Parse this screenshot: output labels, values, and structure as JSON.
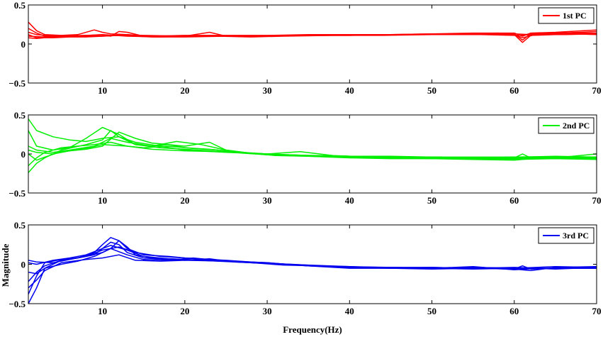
{
  "chart_data": [
    {
      "type": "line",
      "legend_position": "top-right",
      "legend_label": "1st PC",
      "color": "#ff0000",
      "xlim": [
        1,
        70
      ],
      "ylim": [
        -0.5,
        0.5
      ],
      "xticks": [
        10,
        20,
        30,
        40,
        50,
        60,
        70
      ],
      "yticks": [
        0.5,
        0,
        -0.5
      ],
      "xtick_labels": [
        "10",
        "20",
        "30",
        "40",
        "50",
        "60",
        "70"
      ],
      "ytick_labels": [
        "0.5",
        "0",
        "−0.5"
      ],
      "xlabel": "",
      "ylabel": "",
      "grid": false,
      "series": [
        {
          "x": [
            1,
            2,
            3,
            5,
            7,
            9,
            10,
            11,
            13,
            15,
            18,
            20,
            23,
            25,
            28,
            30,
            35,
            40,
            45,
            50,
            55,
            58,
            60,
            61,
            62,
            65,
            68,
            70
          ],
          "y": [
            0.28,
            0.17,
            0.12,
            0.11,
            0.12,
            0.18,
            0.15,
            0.13,
            0.12,
            0.1,
            0.1,
            0.1,
            0.11,
            0.1,
            0.1,
            0.1,
            0.11,
            0.12,
            0.12,
            0.13,
            0.13,
            0.14,
            0.13,
            0.05,
            0.13,
            0.14,
            0.15,
            0.16
          ]
        },
        {
          "x": [
            1,
            2,
            3,
            5,
            8,
            10,
            11,
            12,
            13,
            15,
            20,
            23,
            25,
            30,
            35,
            40,
            45,
            50,
            55,
            60,
            61,
            62,
            65,
            70
          ],
          "y": [
            0.2,
            0.14,
            0.1,
            0.1,
            0.11,
            0.12,
            0.1,
            0.16,
            0.15,
            0.1,
            0.1,
            0.15,
            0.1,
            0.1,
            0.11,
            0.11,
            0.12,
            0.13,
            0.14,
            0.14,
            0.1,
            0.14,
            0.15,
            0.18
          ]
        },
        {
          "x": [
            1,
            2,
            4,
            6,
            8,
            10,
            12,
            14,
            16,
            20,
            25,
            30,
            35,
            40,
            45,
            50,
            55,
            60,
            61,
            63,
            66,
            70
          ],
          "y": [
            0.12,
            0.08,
            0.08,
            0.09,
            0.09,
            0.1,
            0.11,
            0.1,
            0.09,
            0.09,
            0.1,
            0.1,
            0.11,
            0.12,
            0.12,
            0.12,
            0.13,
            0.12,
            0.08,
            0.13,
            0.14,
            0.14
          ]
        },
        {
          "x": [
            1,
            3,
            5,
            8,
            10,
            12,
            15,
            20,
            25,
            30,
            35,
            40,
            45,
            50,
            55,
            58,
            60,
            61,
            62,
            65,
            70
          ],
          "y": [
            0.1,
            0.09,
            0.1,
            0.11,
            0.1,
            0.11,
            0.11,
            0.1,
            0.1,
            0.1,
            0.11,
            0.11,
            0.12,
            0.12,
            0.13,
            0.13,
            0.12,
            0.02,
            0.11,
            0.12,
            0.13
          ]
        },
        {
          "x": [
            1,
            2,
            3,
            6,
            9,
            11,
            13,
            16,
            20,
            25,
            30,
            35,
            40,
            45,
            50,
            55,
            60,
            62,
            66,
            70
          ],
          "y": [
            0.15,
            0.12,
            0.11,
            0.1,
            0.1,
            0.11,
            0.12,
            0.1,
            0.11,
            0.11,
            0.11,
            0.12,
            0.12,
            0.12,
            0.12,
            0.13,
            0.13,
            0.12,
            0.12,
            0.13
          ]
        },
        {
          "x": [
            1,
            2,
            4,
            7,
            10,
            13,
            17,
            20,
            24,
            28,
            32,
            38,
            44,
            50,
            56,
            60,
            63,
            67,
            70
          ],
          "y": [
            0.08,
            0.07,
            0.09,
            0.1,
            0.12,
            0.1,
            0.09,
            0.1,
            0.1,
            0.09,
            0.1,
            0.11,
            0.11,
            0.12,
            0.12,
            0.11,
            0.12,
            0.13,
            0.12
          ]
        }
      ]
    },
    {
      "type": "line",
      "legend_position": "top-right",
      "legend_label": "2nd PC",
      "color": "#00ee00",
      "xlim": [
        1,
        70
      ],
      "ylim": [
        -0.5,
        0.5
      ],
      "xticks": [
        10,
        20,
        30,
        40,
        50,
        60,
        70
      ],
      "yticks": [
        0.5,
        0,
        -0.5
      ],
      "xtick_labels": [
        "10",
        "20",
        "30",
        "40",
        "50",
        "60",
        "70"
      ],
      "ytick_labels": [
        "0.5",
        "0",
        "−0.5"
      ],
      "xlabel": "",
      "ylabel": "",
      "grid": false,
      "series": [
        {
          "x": [
            1,
            2,
            4,
            6,
            8,
            10,
            12,
            14,
            16,
            18,
            20,
            23,
            25,
            27,
            30,
            35,
            40,
            45,
            50,
            55,
            60,
            61,
            62,
            65,
            70
          ],
          "y": [
            0.45,
            0.3,
            0.22,
            0.18,
            0.16,
            0.2,
            0.22,
            0.12,
            0.1,
            0.12,
            0.1,
            0.15,
            0.05,
            0.02,
            0.0,
            -0.02,
            -0.03,
            -0.04,
            -0.04,
            -0.05,
            -0.05,
            0.0,
            -0.05,
            -0.05,
            -0.06
          ]
        },
        {
          "x": [
            1,
            2,
            3,
            5,
            8,
            10,
            11,
            12,
            14,
            17,
            20,
            25,
            30,
            34,
            38,
            45,
            50,
            55,
            60,
            65,
            70
          ],
          "y": [
            -0.24,
            -0.12,
            -0.05,
            0.05,
            0.12,
            0.18,
            0.3,
            0.22,
            0.15,
            0.1,
            0.05,
            0.02,
            0.0,
            0.03,
            -0.02,
            -0.05,
            -0.06,
            -0.06,
            -0.07,
            -0.06,
            -0.07
          ]
        },
        {
          "x": [
            1,
            2,
            4,
            6,
            8,
            10,
            12,
            14,
            17,
            20,
            23,
            26,
            30,
            35,
            40,
            45,
            50,
            55,
            60,
            65,
            70
          ],
          "y": [
            0.3,
            0.1,
            0.05,
            0.08,
            0.2,
            0.34,
            0.25,
            0.12,
            0.08,
            0.06,
            0.04,
            0.02,
            0.0,
            -0.02,
            -0.03,
            -0.04,
            -0.04,
            -0.05,
            -0.04,
            -0.04,
            -0.05
          ]
        },
        {
          "x": [
            1,
            2,
            3,
            5,
            7,
            9,
            11,
            13,
            15,
            18,
            21,
            24,
            27,
            30,
            35,
            40,
            45,
            50,
            55,
            60,
            65,
            70
          ],
          "y": [
            -0.15,
            -0.05,
            0.02,
            0.08,
            0.1,
            0.12,
            0.15,
            0.1,
            0.08,
            0.1,
            0.07,
            0.05,
            0.01,
            -0.01,
            -0.02,
            -0.03,
            -0.04,
            -0.04,
            -0.05,
            -0.05,
            -0.04,
            -0.04
          ]
        },
        {
          "x": [
            1,
            2,
            4,
            6,
            9,
            11,
            13,
            16,
            19,
            22,
            25,
            28,
            31,
            35,
            40,
            45,
            50,
            55,
            60,
            62,
            66,
            70
          ],
          "y": [
            0.1,
            0.05,
            0.02,
            0.05,
            0.1,
            0.2,
            0.15,
            0.1,
            0.16,
            0.12,
            0.05,
            0.01,
            -0.02,
            -0.03,
            -0.05,
            -0.06,
            -0.06,
            -0.07,
            -0.08,
            -0.06,
            -0.05,
            -0.06
          ]
        },
        {
          "x": [
            1,
            2,
            3,
            5,
            8,
            10,
            12,
            14,
            16,
            18,
            20,
            23,
            26,
            30,
            35,
            40,
            45,
            50,
            55,
            60,
            65,
            70
          ],
          "y": [
            0.0,
            -0.08,
            -0.04,
            0.03,
            0.06,
            0.1,
            0.28,
            0.2,
            0.14,
            0.12,
            0.08,
            0.06,
            0.03,
            -0.01,
            -0.03,
            -0.04,
            -0.05,
            -0.05,
            -0.05,
            -0.06,
            -0.05,
            0.0
          ]
        },
        {
          "x": [
            1,
            2,
            4,
            6,
            8,
            10,
            13,
            16,
            20,
            24,
            28,
            32,
            36,
            40,
            45,
            50,
            55,
            60,
            65,
            70
          ],
          "y": [
            0.05,
            0.02,
            0.0,
            0.04,
            0.07,
            0.12,
            0.1,
            0.06,
            0.04,
            0.03,
            0.01,
            -0.01,
            -0.02,
            -0.03,
            -0.03,
            -0.04,
            -0.04,
            -0.04,
            -0.03,
            -0.04
          ]
        }
      ]
    },
    {
      "type": "line",
      "legend_position": "top-right",
      "legend_label": "3rd PC",
      "color": "#0000ee",
      "xlim": [
        1,
        70
      ],
      "ylim": [
        -0.5,
        0.5
      ],
      "xticks": [
        10,
        20,
        30,
        40,
        50,
        60,
        70
      ],
      "yticks": [
        0.5,
        0,
        -0.5
      ],
      "xtick_labels": [
        "10",
        "20",
        "30",
        "40",
        "50",
        "60",
        "70"
      ],
      "ytick_labels": [
        "0.5",
        "0",
        "−0.5"
      ],
      "xlabel": "Frequency(Hz)",
      "ylabel": "Magnitude",
      "grid": false,
      "series": [
        {
          "x": [
            1,
            2,
            3,
            5,
            7,
            9,
            10,
            11,
            12,
            13,
            15,
            18,
            20,
            23,
            25,
            28,
            30,
            35,
            40,
            45,
            50,
            55,
            60,
            61,
            62,
            65,
            70
          ],
          "y": [
            -0.5,
            -0.3,
            -0.05,
            0.05,
            0.08,
            0.15,
            0.25,
            0.34,
            0.3,
            0.2,
            0.12,
            0.1,
            0.08,
            0.06,
            0.05,
            0.03,
            0.02,
            -0.02,
            -0.05,
            -0.05,
            -0.06,
            -0.05,
            -0.06,
            -0.02,
            -0.06,
            -0.05,
            -0.05
          ]
        },
        {
          "x": [
            1,
            2,
            3,
            5,
            7,
            9,
            11,
            12,
            13,
            15,
            18,
            20,
            23,
            26,
            30,
            35,
            40,
            45,
            50,
            55,
            60,
            65,
            70
          ],
          "y": [
            -0.38,
            -0.15,
            0.02,
            0.06,
            0.08,
            0.12,
            0.28,
            0.25,
            0.15,
            0.08,
            0.06,
            0.05,
            0.07,
            0.03,
            0.01,
            -0.02,
            -0.04,
            -0.04,
            -0.05,
            -0.04,
            -0.05,
            -0.03,
            -0.04
          ]
        },
        {
          "x": [
            1,
            2,
            3,
            5,
            8,
            10,
            11,
            12,
            13,
            14,
            16,
            20,
            24,
            28,
            32,
            36,
            40,
            45,
            50,
            55,
            60,
            62,
            65,
            70
          ],
          "y": [
            -0.22,
            -0.1,
            -0.02,
            0.05,
            0.1,
            0.15,
            0.2,
            0.3,
            0.22,
            0.12,
            0.08,
            0.06,
            0.05,
            0.03,
            0.0,
            -0.02,
            -0.03,
            -0.04,
            -0.04,
            -0.05,
            -0.06,
            -0.08,
            -0.04,
            -0.03
          ]
        },
        {
          "x": [
            1,
            2,
            4,
            6,
            8,
            10,
            12,
            14,
            17,
            20,
            23,
            27,
            30,
            35,
            40,
            45,
            50,
            55,
            60,
            65,
            70
          ],
          "y": [
            0.05,
            0.03,
            0.02,
            0.06,
            0.1,
            0.18,
            0.22,
            0.15,
            0.1,
            0.08,
            0.06,
            0.03,
            0.01,
            -0.01,
            -0.03,
            -0.05,
            -0.04,
            -0.05,
            -0.04,
            -0.06,
            -0.04
          ]
        },
        {
          "x": [
            1,
            2,
            3,
            5,
            7,
            9,
            11,
            13,
            15,
            18,
            21,
            24,
            28,
            32,
            36,
            40,
            45,
            50,
            55,
            60,
            63,
            67,
            70
          ],
          "y": [
            -0.1,
            -0.12,
            -0.05,
            0.0,
            0.04,
            0.1,
            0.2,
            0.12,
            0.06,
            0.05,
            0.08,
            0.05,
            0.02,
            -0.01,
            -0.02,
            -0.04,
            -0.05,
            -0.05,
            -0.03,
            -0.07,
            -0.05,
            -0.05,
            -0.03
          ]
        },
        {
          "x": [
            1,
            2,
            4,
            6,
            8,
            10,
            11,
            13,
            15,
            18,
            20,
            24,
            28,
            33,
            38,
            44,
            50,
            55,
            60,
            65,
            70
          ],
          "y": [
            0.02,
            0.0,
            0.05,
            0.08,
            0.12,
            0.2,
            0.24,
            0.18,
            0.1,
            0.07,
            0.06,
            0.04,
            0.02,
            0.0,
            -0.03,
            -0.04,
            -0.05,
            -0.04,
            -0.05,
            -0.05,
            -0.04
          ]
        },
        {
          "x": [
            1,
            2,
            3,
            5,
            8,
            10,
            12,
            14,
            17,
            20,
            25,
            30,
            35,
            40,
            45,
            50,
            55,
            60,
            65,
            70
          ],
          "y": [
            -0.3,
            -0.2,
            -0.08,
            0.02,
            0.06,
            0.08,
            0.12,
            0.05,
            0.04,
            0.05,
            0.04,
            0.02,
            -0.02,
            -0.04,
            -0.04,
            -0.05,
            -0.06,
            -0.05,
            -0.05,
            -0.05
          ]
        }
      ]
    }
  ]
}
